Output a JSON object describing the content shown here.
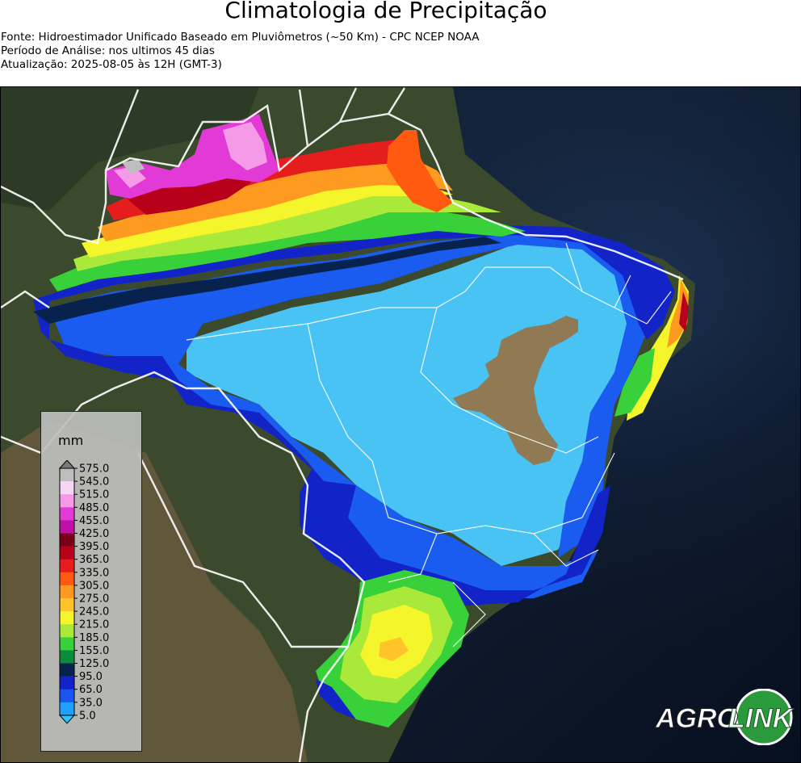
{
  "header": {
    "title": "Climatologia de Precipitação",
    "source": "Fonte: Hidroestimador Unificado Baseado em Pluviômetros (~50 Km) - CPC NCEP NOAA",
    "period": "Período de Análise: nos ultimos 45 dias",
    "updated": "Atualização: 2025-08-05 às 12H (GMT-3)"
  },
  "legend": {
    "unit": "mm",
    "ticks": [
      "575.0",
      "545.0",
      "515.0",
      "485.0",
      "455.0",
      "425.0",
      "395.0",
      "365.0",
      "335.0",
      "305.0",
      "275.0",
      "245.0",
      "215.0",
      "185.0",
      "155.0",
      "125.0",
      "95.0",
      "65.0",
      "35.0",
      "5.0"
    ],
    "colors": [
      "#7a7a7a",
      "#bdbdbd",
      "#f7d6f3",
      "#f49ae6",
      "#e23ad6",
      "#c010a8",
      "#7a0018",
      "#b8001a",
      "#e51d1d",
      "#ff5a10",
      "#ff9a20",
      "#ffc42a",
      "#f4f52a",
      "#a9e93a",
      "#38d13a",
      "#0c8c3a",
      "#08224e",
      "#1224c8",
      "#1a55f0",
      "#1ea0ff",
      "#22c8ff"
    ]
  },
  "map": {
    "colors": {
      "light_blue": "#49c2f4",
      "blue": "#1a5cf0",
      "dark_blue": "#1224c8",
      "navy": "#08224e",
      "green": "#38d13a",
      "lime": "#a9e93a",
      "yellow": "#f4f52a",
      "orange": "#ff9a20",
      "red": "#e51d1d",
      "dark_red": "#b8001a",
      "magenta": "#e23ad6",
      "pink": "#f49ae6",
      "no_data": "#8f7a55"
    }
  },
  "logo": {
    "text_left": "AGRO",
    "text_right": "LINK"
  }
}
